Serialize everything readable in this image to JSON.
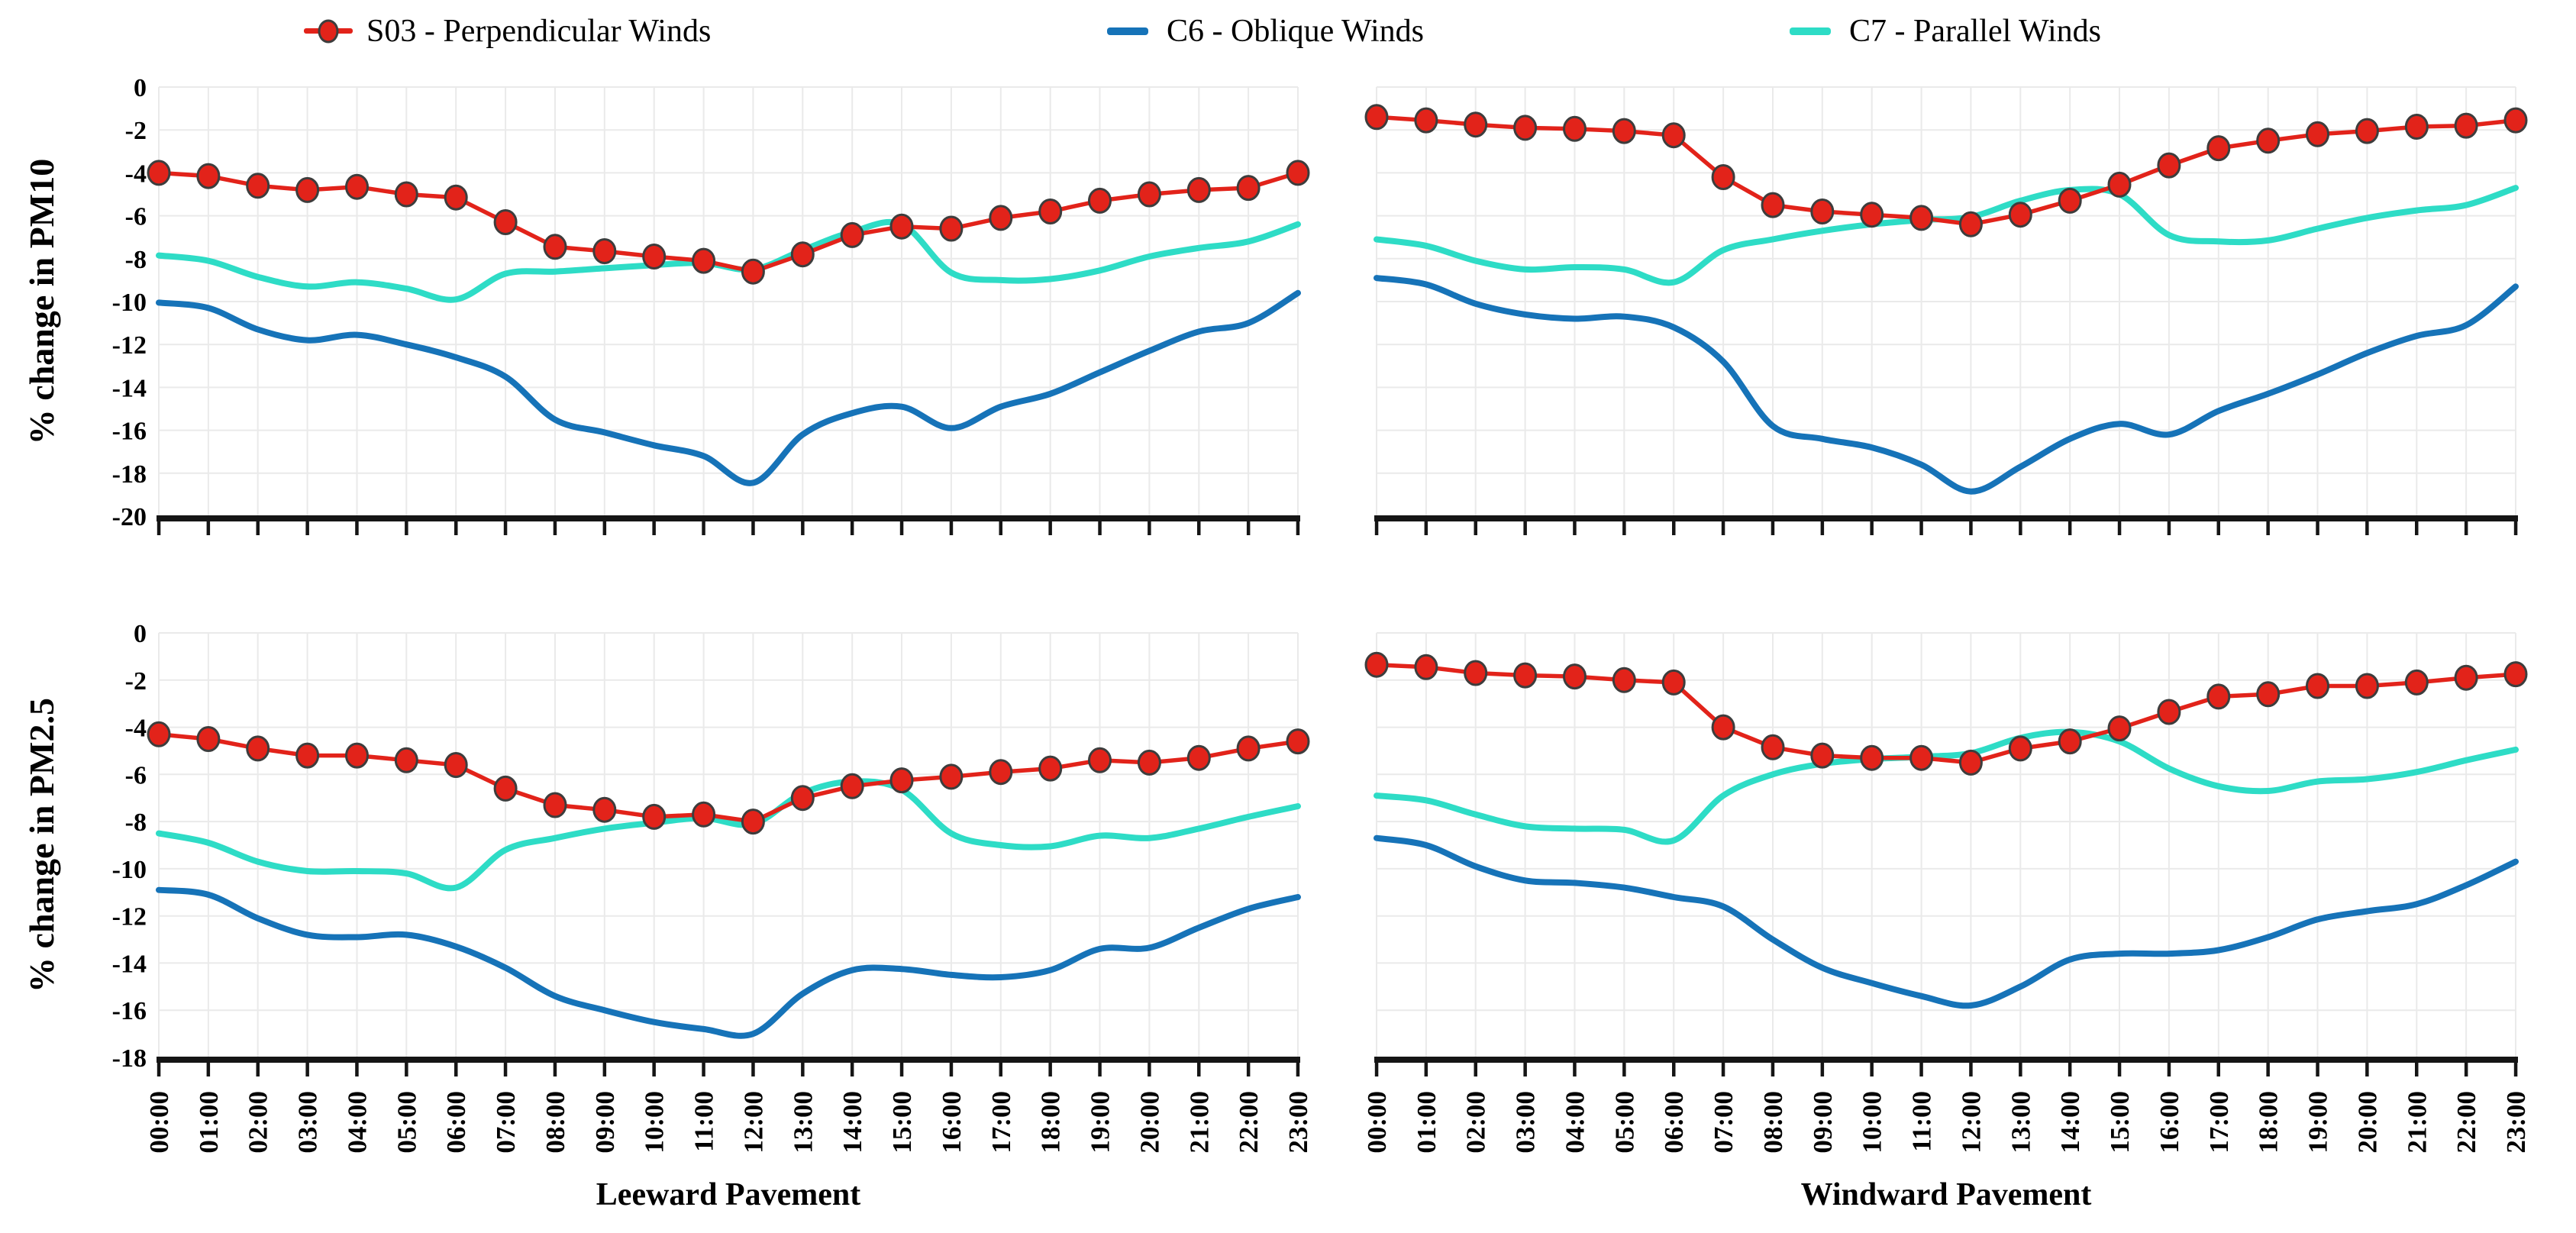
{
  "figure": {
    "description": "Hourly percent change in particulate matter for leeward and windward pavements",
    "panels": 4
  },
  "colors": {
    "s03_red": "#e2231a",
    "c6_blue": "#1673b8",
    "c7_cyan": "#2edcc6",
    "grid": "#eaeaea",
    "axis": "#151515",
    "marker_edge": "#3d3d3d",
    "text": "#000000",
    "background": "#ffffff"
  },
  "legend": {
    "items": [
      {
        "series": "S03",
        "label": "S03 - Perpendicular Winds",
        "marker": "circle-on-line",
        "color": "#e2231a"
      },
      {
        "series": "C6",
        "label": "C6 - Oblique Winds",
        "marker": "line",
        "color": "#1673b8"
      },
      {
        "series": "C7",
        "label": "C7 - Parallel Winds",
        "marker": "line",
        "color": "#2edcc6"
      }
    ]
  },
  "axes": {
    "left_column_title": "Leeward Pavement",
    "right_column_title": "Windward Pavement",
    "top_row_ylabel": "% change in PM10",
    "bottom_row_ylabel": "% change in PM2.5"
  },
  "chart_data": [
    {
      "id": "pm10_leeward",
      "type": "line",
      "panel": "top-left",
      "ylabel": "% change in PM10",
      "xlabel": "",
      "ylim": [
        -20,
        0
      ],
      "yticks": [
        0,
        -2,
        -4,
        -6,
        -8,
        -10,
        -12,
        -14,
        -16,
        -18,
        -20
      ],
      "y_tick_labels_visible": true,
      "x_tick_labels_visible": false,
      "grid": true,
      "categories": [
        "00:00",
        "01:00",
        "02:00",
        "03:00",
        "04:00",
        "05:00",
        "06:00",
        "07:00",
        "08:00",
        "09:00",
        "10:00",
        "11:00",
        "12:00",
        "13:00",
        "14:00",
        "15:00",
        "16:00",
        "17:00",
        "18:00",
        "19:00",
        "20:00",
        "21:00",
        "22:00",
        "23:00"
      ],
      "series": [
        {
          "name": "S03",
          "values": [
            -4.0,
            -4.15,
            -4.6,
            -4.8,
            -4.65,
            -5.0,
            -5.15,
            -6.3,
            -7.45,
            -7.65,
            -7.9,
            -8.1,
            -8.6,
            -7.8,
            -6.9,
            -6.5,
            -6.6,
            -6.1,
            -5.8,
            -5.3,
            -5.0,
            -4.8,
            -4.7,
            -4.0
          ]
        },
        {
          "name": "C6",
          "values": [
            -10.05,
            -10.3,
            -11.3,
            -11.8,
            -11.55,
            -12.0,
            -12.6,
            -13.5,
            -15.5,
            -16.1,
            -16.7,
            -17.2,
            -18.45,
            -16.2,
            -15.2,
            -14.9,
            -15.9,
            -14.9,
            -14.3,
            -13.3,
            -12.3,
            -11.4,
            -11.0,
            -9.6
          ]
        },
        {
          "name": "C7",
          "values": [
            -7.85,
            -8.1,
            -8.85,
            -9.3,
            -9.1,
            -9.4,
            -9.9,
            -8.7,
            -8.6,
            -8.45,
            -8.3,
            -8.2,
            -8.5,
            -7.6,
            -6.75,
            -6.4,
            -8.65,
            -9.0,
            -8.95,
            -8.55,
            -7.9,
            -7.5,
            -7.2,
            -6.4
          ]
        }
      ]
    },
    {
      "id": "pm10_windward",
      "type": "line",
      "panel": "top-right",
      "ylabel": "",
      "xlabel": "",
      "ylim": [
        -20,
        0
      ],
      "yticks": [
        0,
        -2,
        -4,
        -6,
        -8,
        -10,
        -12,
        -14,
        -16,
        -18,
        -20
      ],
      "y_tick_labels_visible": false,
      "x_tick_labels_visible": false,
      "grid": true,
      "categories": [
        "00:00",
        "01:00",
        "02:00",
        "03:00",
        "04:00",
        "05:00",
        "06:00",
        "07:00",
        "08:00",
        "09:00",
        "10:00",
        "11:00",
        "12:00",
        "13:00",
        "14:00",
        "15:00",
        "16:00",
        "17:00",
        "18:00",
        "19:00",
        "20:00",
        "21:00",
        "22:00",
        "23:00"
      ],
      "series": [
        {
          "name": "S03",
          "values": [
            -1.4,
            -1.55,
            -1.75,
            -1.9,
            -1.95,
            -2.05,
            -2.25,
            -4.2,
            -5.5,
            -5.8,
            -5.95,
            -6.1,
            -6.4,
            -5.95,
            -5.3,
            -4.55,
            -3.65,
            -2.85,
            -2.5,
            -2.2,
            -2.05,
            -1.85,
            -1.8,
            -1.55
          ]
        },
        {
          "name": "C6",
          "values": [
            -8.9,
            -9.2,
            -10.1,
            -10.6,
            -10.8,
            -10.7,
            -11.2,
            -12.8,
            -15.8,
            -16.4,
            -16.8,
            -17.6,
            -18.85,
            -17.7,
            -16.4,
            -15.7,
            -16.2,
            -15.1,
            -14.3,
            -13.4,
            -12.4,
            -11.6,
            -11.1,
            -9.3
          ]
        },
        {
          "name": "C7",
          "values": [
            -7.1,
            -7.4,
            -8.1,
            -8.5,
            -8.4,
            -8.5,
            -9.1,
            -7.6,
            -7.1,
            -6.7,
            -6.4,
            -6.2,
            -6.05,
            -5.3,
            -4.8,
            -5.0,
            -6.9,
            -7.2,
            -7.15,
            -6.6,
            -6.1,
            -5.75,
            -5.5,
            -4.7
          ]
        }
      ]
    },
    {
      "id": "pm25_leeward",
      "type": "line",
      "panel": "bottom-left",
      "ylabel": "% change in PM2.5",
      "xlabel": "Leeward Pavement",
      "ylim": [
        -18,
        0
      ],
      "yticks": [
        0,
        -2,
        -4,
        -6,
        -8,
        -10,
        -12,
        -14,
        -16,
        -18
      ],
      "y_tick_labels_visible": true,
      "x_tick_labels_visible": true,
      "grid": true,
      "categories": [
        "00:00",
        "01:00",
        "02:00",
        "03:00",
        "04:00",
        "05:00",
        "06:00",
        "07:00",
        "08:00",
        "09:00",
        "10:00",
        "11:00",
        "12:00",
        "13:00",
        "14:00",
        "15:00",
        "16:00",
        "17:00",
        "18:00",
        "19:00",
        "20:00",
        "21:00",
        "22:00",
        "23:00"
      ],
      "series": [
        {
          "name": "S03",
          "values": [
            -4.3,
            -4.5,
            -4.9,
            -5.2,
            -5.2,
            -5.4,
            -5.6,
            -6.6,
            -7.3,
            -7.5,
            -7.8,
            -7.7,
            -8.0,
            -7.0,
            -6.5,
            -6.25,
            -6.1,
            -5.9,
            -5.75,
            -5.4,
            -5.5,
            -5.3,
            -4.9,
            -4.6
          ]
        },
        {
          "name": "C6",
          "values": [
            -10.9,
            -11.1,
            -12.1,
            -12.8,
            -12.9,
            -12.8,
            -13.3,
            -14.2,
            -15.4,
            -16.0,
            -16.5,
            -16.8,
            -17.0,
            -15.3,
            -14.3,
            -14.25,
            -14.5,
            -14.6,
            -14.3,
            -13.4,
            -13.35,
            -12.5,
            -11.7,
            -11.2
          ]
        },
        {
          "name": "C7",
          "values": [
            -8.5,
            -8.9,
            -9.7,
            -10.1,
            -10.1,
            -10.2,
            -10.8,
            -9.2,
            -8.7,
            -8.3,
            -8.05,
            -7.85,
            -8.1,
            -6.8,
            -6.3,
            -6.65,
            -8.5,
            -9.0,
            -9.05,
            -8.6,
            -8.7,
            -8.3,
            -7.8,
            -7.35
          ]
        }
      ]
    },
    {
      "id": "pm25_windward",
      "type": "line",
      "panel": "bottom-right",
      "ylabel": "",
      "xlabel": "Windward Pavement",
      "ylim": [
        -18,
        0
      ],
      "yticks": [
        0,
        -2,
        -4,
        -6,
        -8,
        -10,
        -12,
        -14,
        -16,
        -18
      ],
      "y_tick_labels_visible": false,
      "x_tick_labels_visible": true,
      "grid": true,
      "categories": [
        "00:00",
        "01:00",
        "02:00",
        "03:00",
        "04:00",
        "05:00",
        "06:00",
        "07:00",
        "08:00",
        "09:00",
        "10:00",
        "11:00",
        "12:00",
        "13:00",
        "14:00",
        "15:00",
        "16:00",
        "17:00",
        "18:00",
        "19:00",
        "20:00",
        "21:00",
        "22:00",
        "23:00"
      ],
      "series": [
        {
          "name": "S03",
          "values": [
            -1.35,
            -1.45,
            -1.7,
            -1.8,
            -1.85,
            -2.0,
            -2.1,
            -4.0,
            -4.85,
            -5.2,
            -5.3,
            -5.3,
            -5.5,
            -4.9,
            -4.6,
            -4.05,
            -3.35,
            -2.7,
            -2.6,
            -2.25,
            -2.25,
            -2.1,
            -1.9,
            -1.75
          ]
        },
        {
          "name": "C6",
          "values": [
            -8.7,
            -9.0,
            -9.9,
            -10.5,
            -10.6,
            -10.8,
            -11.2,
            -11.6,
            -13.0,
            -14.2,
            -14.85,
            -15.4,
            -15.8,
            -15.0,
            -13.85,
            -13.6,
            -13.6,
            -13.45,
            -12.9,
            -12.15,
            -11.8,
            -11.5,
            -10.7,
            -9.7
          ]
        },
        {
          "name": "C7",
          "values": [
            -6.9,
            -7.1,
            -7.7,
            -8.2,
            -8.3,
            -8.35,
            -8.8,
            -6.9,
            -6.0,
            -5.55,
            -5.35,
            -5.25,
            -5.1,
            -4.45,
            -4.2,
            -4.6,
            -5.75,
            -6.5,
            -6.7,
            -6.3,
            -6.2,
            -5.9,
            -5.4,
            -4.95
          ]
        }
      ]
    }
  ]
}
